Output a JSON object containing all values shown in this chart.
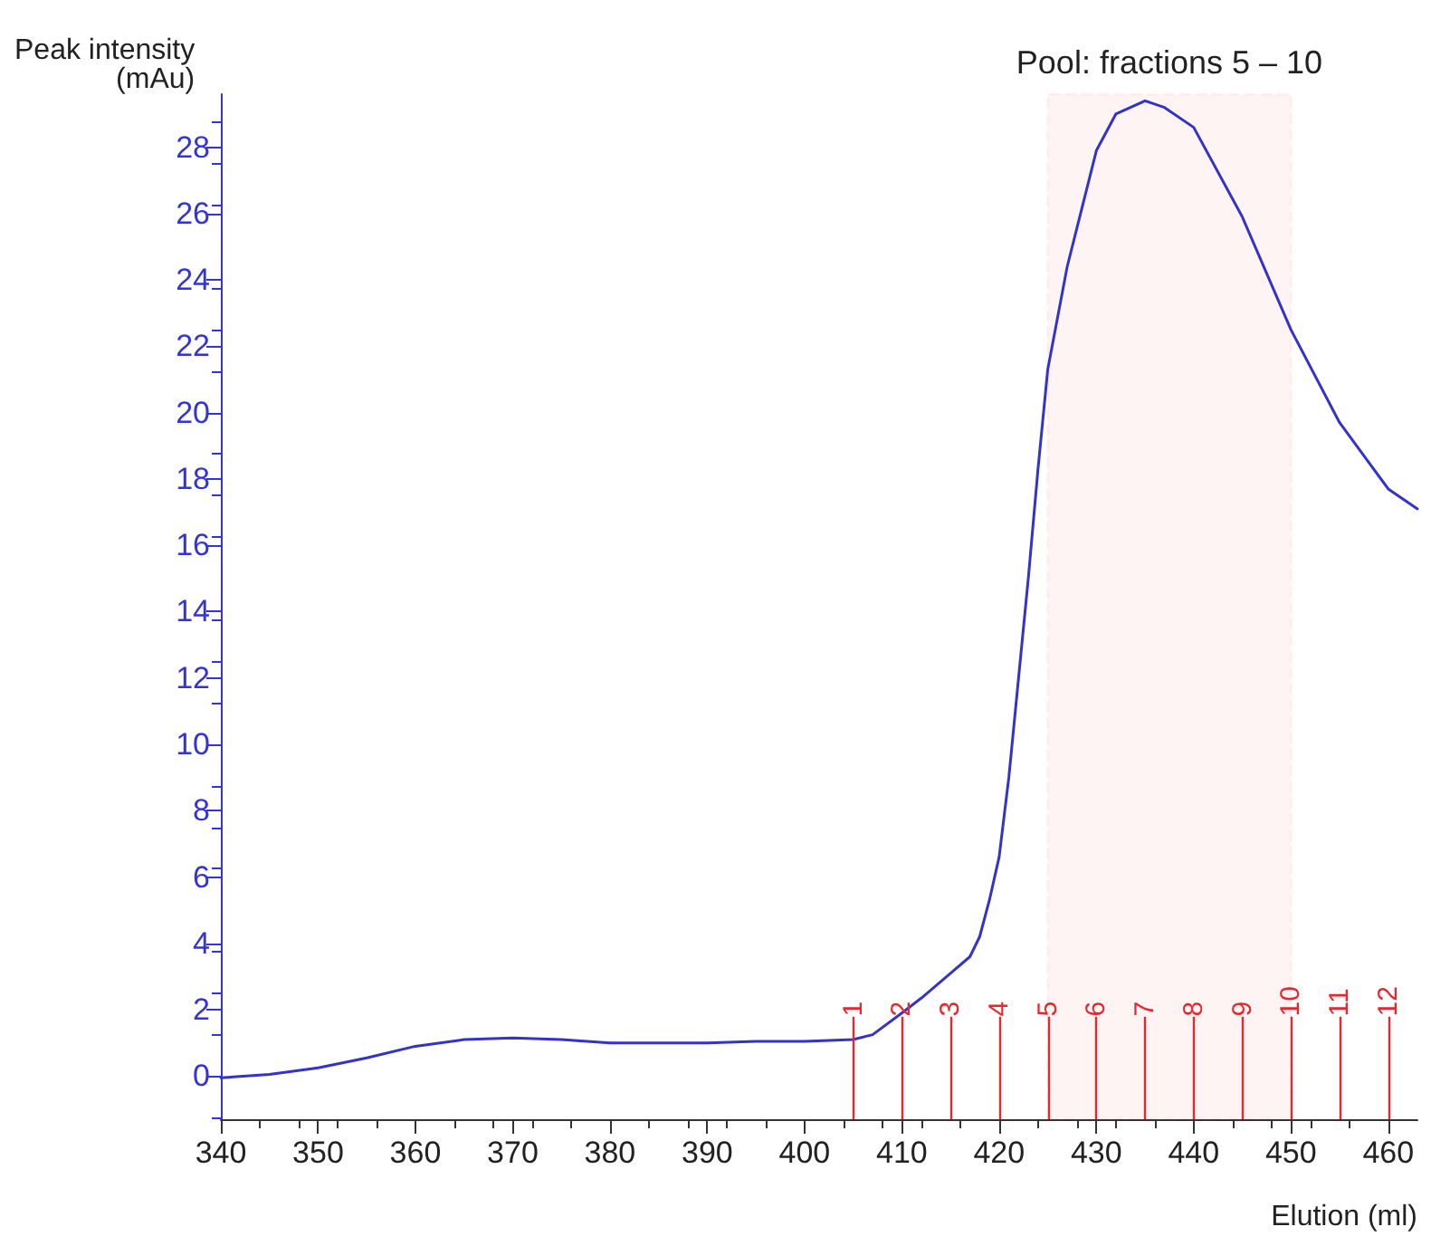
{
  "chart_data": {
    "type": "line",
    "xlabel": "Elution (ml)",
    "ylabel": "Peak intensity\n(mAu)",
    "x": [
      340,
      345,
      350,
      355,
      360,
      365,
      370,
      375,
      380,
      385,
      390,
      395,
      400,
      405,
      407,
      410,
      412,
      415,
      417,
      418,
      419,
      420,
      421,
      422,
      423,
      424,
      425,
      427,
      430,
      432,
      435,
      437,
      440,
      445,
      450,
      455,
      460,
      463
    ],
    "series": [
      {
        "color": "#3333cc",
        "values": [
          -0.05,
          0.05,
          0.25,
          0.55,
          0.9,
          1.1,
          1.15,
          1.1,
          1.0,
          1.0,
          1.0,
          1.05,
          1.05,
          1.1,
          1.25,
          1.9,
          2.35,
          3.1,
          3.6,
          4.2,
          5.3,
          6.6,
          9.0,
          12.0,
          15.0,
          18.3,
          21.3,
          24.4,
          27.9,
          29.0,
          29.4,
          29.2,
          28.6,
          25.9,
          22.5,
          19.7,
          17.7,
          17.1
        ]
      }
    ],
    "xlim": [
      340,
      463
    ],
    "ylim": [
      -1.3,
      29.6
    ],
    "xticks": [
      340,
      350,
      360,
      370,
      380,
      390,
      400,
      410,
      420,
      430,
      440,
      450,
      460
    ],
    "yticks": [
      0,
      2,
      4,
      6,
      8,
      10,
      12,
      14,
      16,
      18,
      20,
      22,
      24,
      26,
      28
    ],
    "grid": false,
    "marker": "none",
    "line_style": "solid",
    "ref_lines": [
      {
        "axis": "x",
        "value": 405,
        "color": "#e8262b"
      },
      {
        "axis": "x",
        "value": 410,
        "color": "#e8262b"
      },
      {
        "axis": "x",
        "value": 415,
        "color": "#e8262b"
      },
      {
        "axis": "x",
        "value": 420,
        "color": "#e8262b"
      },
      {
        "axis": "x",
        "value": 425,
        "color": "#e8262b"
      },
      {
        "axis": "x",
        "value": 430,
        "color": "#e8262b"
      },
      {
        "axis": "x",
        "value": 435,
        "color": "#e8262b"
      },
      {
        "axis": "x",
        "value": 440,
        "color": "#e8262b"
      },
      {
        "axis": "x",
        "value": 445,
        "color": "#e8262b"
      },
      {
        "axis": "x",
        "value": 450,
        "color": "#e8262b"
      },
      {
        "axis": "x",
        "value": 455,
        "color": "#e8262b"
      },
      {
        "axis": "x",
        "value": 460,
        "color": "#e8262b"
      }
    ],
    "annotations": [
      {
        "text": "1",
        "x": 405,
        "y": 1.8
      },
      {
        "text": "2",
        "x": 410,
        "y": 1.8
      },
      {
        "text": "3",
        "x": 415,
        "y": 1.8
      },
      {
        "text": "4",
        "x": 420,
        "y": 1.8
      },
      {
        "text": "5",
        "x": 425,
        "y": 1.8
      },
      {
        "text": "6",
        "x": 430,
        "y": 1.8
      },
      {
        "text": "7",
        "x": 435,
        "y": 1.8
      },
      {
        "text": "8",
        "x": 440,
        "y": 1.8
      },
      {
        "text": "9",
        "x": 445,
        "y": 1.8
      },
      {
        "text": "10",
        "x": 450,
        "y": 1.8
      },
      {
        "text": "11",
        "x": 455,
        "y": 1.8
      },
      {
        "text": "12",
        "x": 460,
        "y": 1.8
      }
    ],
    "bands": [
      {
        "axis": "x",
        "from": 425,
        "to": 450,
        "label": "Pool: fractions 5 – 10",
        "color": "#e8262b"
      }
    ]
  }
}
